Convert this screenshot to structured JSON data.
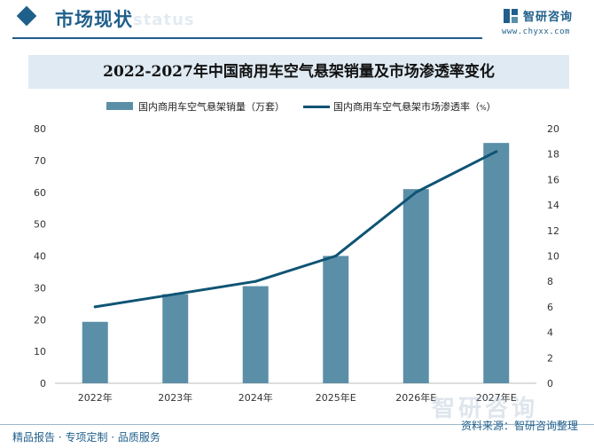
{
  "header": {
    "section_title": "市场现状",
    "section_ghost": "status",
    "brand_name": "智研咨询",
    "brand_url": "www.chyxx.com"
  },
  "chart_data": {
    "type": "bar",
    "title": "2022-2027年中国商用车空气悬架销量及市场渗透率变化",
    "categories": [
      "2022年",
      "2023年",
      "2024年",
      "2025年E",
      "2026年E",
      "2027年E"
    ],
    "series": [
      {
        "name": "国内商用车空气悬架销量（万套）",
        "type": "bar",
        "axis": "left",
        "color": "#5b8fa8",
        "values": [
          19.3,
          28,
          30.5,
          40,
          61,
          75.5
        ]
      },
      {
        "name": "国内商用车空气悬架市场渗透率（%）",
        "type": "line",
        "axis": "right",
        "color": "#0f5474",
        "values": [
          6,
          7,
          8,
          10,
          15,
          18.2
        ]
      }
    ],
    "y_left": {
      "min": 0,
      "max": 80,
      "step": 10,
      "ticks": [
        "0",
        "10",
        "20",
        "30",
        "40",
        "50",
        "60",
        "70",
        "80"
      ]
    },
    "y_right": {
      "min": 0,
      "max": 20,
      "step": 2,
      "ticks": [
        "0",
        "2",
        "4",
        "6",
        "8",
        "10",
        "12",
        "14",
        "16",
        "18",
        "20"
      ]
    },
    "xlabel": "",
    "ylabel": "",
    "legend": "top",
    "grid": false
  },
  "legend": {
    "item1_text": "国内商用车空气悬架销量（万套）",
    "item2_text": "国内商用车空气悬架市场渗透率（",
    "item2_unit": "%",
    "item2_close": "）"
  },
  "footer": {
    "left": "精品报告 · 专项定制 · 品质服务",
    "right": "资料来源：智研咨询整理"
  },
  "watermark": {
    "text": "智研咨询"
  }
}
